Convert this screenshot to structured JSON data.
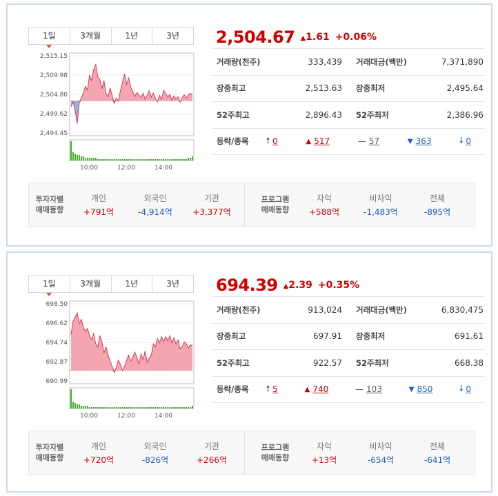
{
  "panels": [
    {
      "tabs": [
        "1일",
        "3개월",
        "1년",
        "3년"
      ],
      "price": "2,504.67",
      "change": "1.61",
      "change_pct": "+0.06%",
      "stats": {
        "volume_label": "거래량(천주)",
        "volume": "333,439",
        "amount_label": "거래대금(백만)",
        "amount": "7,371,890",
        "high_label": "장중최고",
        "high": "2,513.63",
        "low_label": "장중최저",
        "low": "2,495.64",
        "w52high_label": "52주최고",
        "w52high": "2,896.43",
        "w52low_label": "52주최저",
        "w52low": "2,386.96",
        "updown_label": "등락/종목",
        "upper_limit": "0",
        "up": "517",
        "flat": "57",
        "down": "363",
        "lower_limit": "0"
      },
      "flow": {
        "investor_title_1": "투자자별",
        "investor_title_2": "매매동향",
        "individual_label": "개인",
        "individual": "+791억",
        "foreign_label": "외국인",
        "foreign": "-4,914억",
        "institution_label": "기관",
        "institution": "+3,377억",
        "program_title_1": "프로그램",
        "program_title_2": "매매동향",
        "arb_label": "차익",
        "arb": "+588억",
        "nonarb_label": "비차익",
        "nonarb": "-1,483억",
        "total_label": "전체",
        "total": "-895억"
      },
      "chart_data": {
        "type": "area",
        "y_ticks": [
          "2,515.15",
          "2,509.98",
          "2,504.80",
          "2,499.62",
          "2,494.45"
        ],
        "x_ticks": [
          "10:00",
          "12:00",
          "14:00"
        ],
        "ylim": [
          2494.45,
          2515.15
        ],
        "baseline": 2503.06,
        "values": [
          2501.5,
          2502.8,
          2500.5,
          2497.0,
          2502.5,
          2503.8,
          2505.2,
          2507.0,
          2506.0,
          2510.0,
          2508.5,
          2511.5,
          2512.8,
          2509.5,
          2508.8,
          2506.3,
          2508.5,
          2505.0,
          2504.2,
          2506.5,
          2504.5,
          2502.4,
          2503.8,
          2503.0,
          2505.8,
          2508.0,
          2510.3,
          2507.5,
          2509.2,
          2506.8,
          2505.5,
          2504.2,
          2505.3,
          2504.6,
          2504.0,
          2505.1,
          2503.5,
          2504.6,
          2505.8,
          2504.1,
          2505.2,
          2503.7,
          2502.8,
          2504.5,
          2503.5,
          2505.9,
          2505.0,
          2504.0,
          2504.8,
          2503.2,
          2504.4,
          2503.5,
          2504.2,
          2502.7,
          2503.9,
          2504.7,
          2503.8,
          2504.6,
          2505.1,
          2504.67
        ],
        "volume": [
          14,
          6,
          5,
          4,
          4,
          3,
          3,
          2,
          2,
          2,
          2,
          2,
          2,
          1,
          1,
          1,
          1,
          1,
          1,
          1,
          1,
          1,
          1,
          1,
          1,
          1,
          1,
          1,
          1,
          1,
          1,
          1,
          1,
          1,
          1,
          1,
          1,
          1,
          1,
          1,
          1,
          1,
          1,
          1,
          1,
          1,
          1,
          1,
          1,
          1,
          1,
          1,
          1,
          1,
          1,
          1,
          1,
          2,
          2,
          3
        ]
      }
    },
    {
      "tabs": [
        "1일",
        "3개월",
        "1년",
        "3년"
      ],
      "price": "694.39",
      "change": "2.39",
      "change_pct": "+0.35%",
      "stats": {
        "volume_label": "거래량(천주)",
        "volume": "913,024",
        "amount_label": "거래대금(백만)",
        "amount": "6,830,475",
        "high_label": "장중최고",
        "high": "697.91",
        "low_label": "장중최저",
        "low": "691.61",
        "w52high_label": "52주최고",
        "w52high": "922.57",
        "w52low_label": "52주최저",
        "w52low": "668.38",
        "updown_label": "등락/종목",
        "upper_limit": "5",
        "up": "740",
        "flat": "103",
        "down": "850",
        "lower_limit": "0"
      },
      "flow": {
        "investor_title_1": "투자자별",
        "investor_title_2": "매매동향",
        "individual_label": "개인",
        "individual": "+720억",
        "foreign_label": "외국인",
        "foreign": "-826억",
        "institution_label": "기관",
        "institution": "+266억",
        "program_title_1": "프로그램",
        "program_title_2": "매매동향",
        "arb_label": "차익",
        "arb": "+13억",
        "nonarb_label": "비차익",
        "nonarb": "-654억",
        "total_label": "전체",
        "total": "-641억"
      },
      "chart_data": {
        "type": "area",
        "y_ticks": [
          "698.50",
          "696.62",
          "694.74",
          "692.87",
          "690.99"
        ],
        "x_ticks": [
          "10:00",
          "12:00",
          "14:00"
        ],
        "ylim": [
          690.99,
          698.5
        ],
        "baseline": 692.0,
        "values": [
          695.5,
          696.8,
          697.2,
          697.6,
          696.6,
          697.0,
          696.2,
          695.8,
          696.1,
          695.4,
          695.0,
          695.6,
          694.6,
          694.3,
          695.4,
          694.8,
          693.7,
          694.3,
          693.5,
          692.9,
          692.4,
          691.8,
          692.3,
          693.0,
          692.6,
          692.0,
          692.4,
          693.0,
          693.5,
          692.9,
          693.3,
          693.8,
          693.3,
          692.6,
          693.6,
          693.1,
          693.9,
          692.8,
          693.2,
          693.5,
          694.6,
          694.3,
          695.1,
          694.7,
          695.3,
          694.8,
          695.3,
          694.9,
          695.4,
          694.7,
          695.2,
          694.6,
          695.0,
          694.1,
          694.3,
          694.8,
          694.6,
          694.2,
          694.5,
          694.39
        ],
        "volume": [
          14,
          5,
          4,
          3,
          3,
          2,
          2,
          2,
          2,
          1,
          1,
          1,
          1,
          1,
          1,
          1,
          1,
          1,
          1,
          1,
          1,
          1,
          1,
          1,
          1,
          1,
          1,
          1,
          1,
          1,
          1,
          1,
          1,
          1,
          1,
          1,
          1,
          1,
          1,
          1,
          1,
          1,
          1,
          1,
          1,
          1,
          1,
          1,
          1,
          1,
          1,
          1,
          1,
          1,
          1,
          1,
          1,
          1,
          1,
          2
        ]
      }
    }
  ]
}
